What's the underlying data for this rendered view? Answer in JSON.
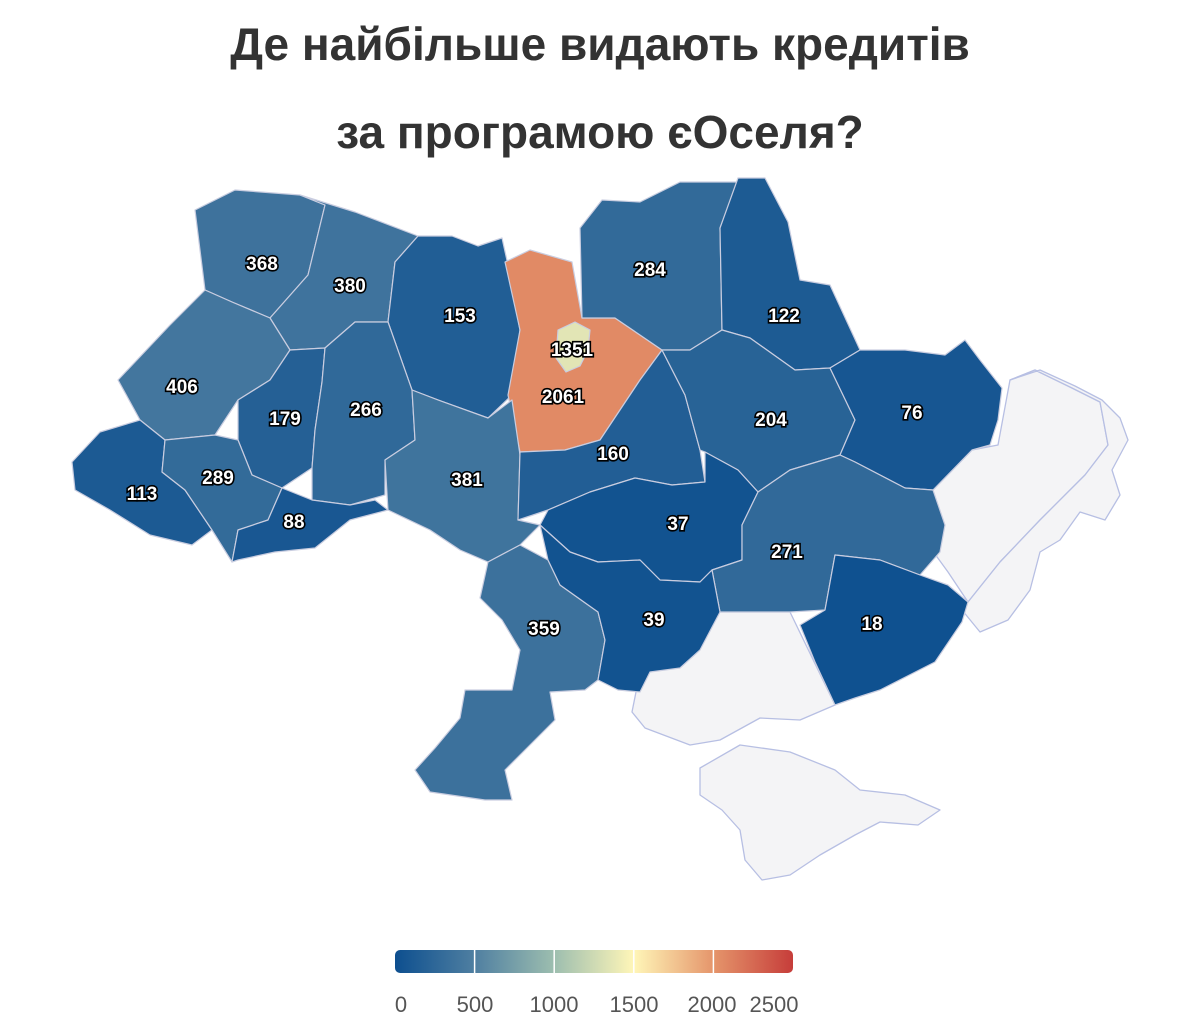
{
  "title": {
    "line1": "Де найбільше видають кредитів",
    "line2": "за програмою єОселя?"
  },
  "chart_data": {
    "type": "choropleth",
    "region_values": {
      "volyn": 368,
      "rivne": 380,
      "zhytomyr": 153,
      "kyiv_oblast": 2061,
      "kyiv_city": 1351,
      "chernihiv": 284,
      "sumy": 122,
      "lviv": 406,
      "ternopil": 179,
      "khmelnytskyi": 266,
      "zakarpattia": 113,
      "ivano_frankivsk": 289,
      "chernivtsi": 88,
      "vinnytsia": 381,
      "cherkasy": 160,
      "poltava": 204,
      "kharkiv": 76,
      "kirovohrad": 37,
      "dnipropetrovsk": 271,
      "odesa": 359,
      "mykolaiv": 39,
      "zaporizhzhia": 18
    },
    "legend": {
      "ticks": [
        "0",
        "500",
        "1000",
        "1500",
        "2000",
        "2500"
      ],
      "min": 0,
      "max": 2500,
      "stops": [
        {
          "value": 0,
          "color": "#0d4f8f"
        },
        {
          "value": 500,
          "color": "#4f7fa1"
        },
        {
          "value": 1000,
          "color": "#9dbeaf"
        },
        {
          "value": 1500,
          "color": "#fff6b8"
        },
        {
          "value": 2000,
          "color": "#e5956b"
        },
        {
          "value": 2500,
          "color": "#c63d3a"
        }
      ]
    },
    "nodata_color": "#f4f4f6"
  }
}
